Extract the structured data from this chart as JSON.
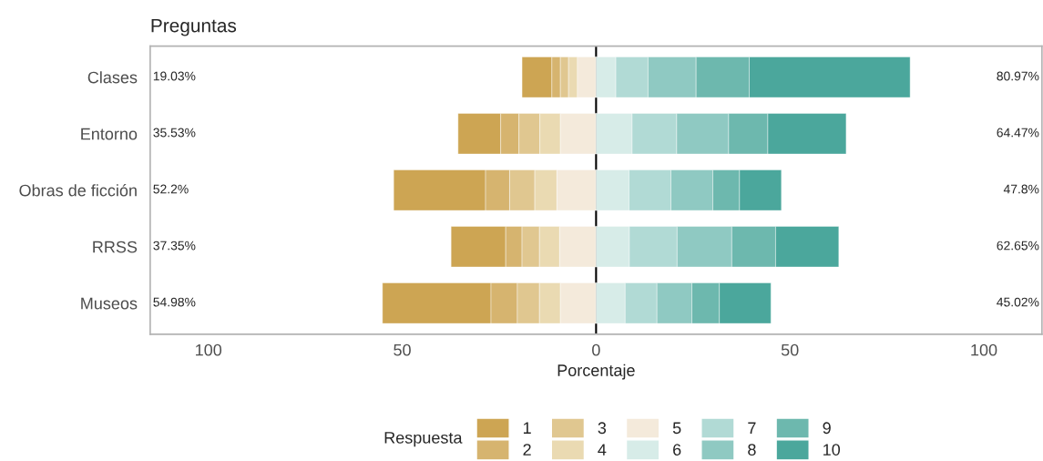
{
  "chart_data": {
    "type": "bar",
    "orientation": "horizontal",
    "stacked": true,
    "ylabel": "Preguntas",
    "xlabel": "Porcentaje",
    "legend_title": "Respuesta",
    "legend": "bottom",
    "grid": false,
    "categories": [
      "Clases",
      "Entorno",
      "Obras de ficción",
      "RRSS",
      "Museos"
    ],
    "xlim": [
      -115,
      115
    ],
    "xticks": [
      {
        "value": -100,
        "label": "100"
      },
      {
        "value": -50,
        "label": "50"
      },
      0,
      50,
      100
    ],
    "ref_lines": [
      {
        "axis": "x",
        "value": 0,
        "color": "#000000"
      }
    ],
    "series": [
      {
        "name": "1",
        "color": "#cda553",
        "values": [
          -7.7,
          -11.0,
          -23.7,
          -14.1,
          -28.0
        ]
      },
      {
        "name": "2",
        "color": "#d6b46f",
        "values": [
          -2.2,
          -4.7,
          -6.2,
          -4.2,
          -6.8
        ]
      },
      {
        "name": "3",
        "color": "#e0c790",
        "values": [
          -2.1,
          -5.4,
          -6.5,
          -4.5,
          -5.7
        ]
      },
      {
        "name": "4",
        "color": "#eadab2",
        "values": [
          -2.3,
          -5.3,
          -5.7,
          -5.2,
          -5.4
        ]
      },
      {
        "name": "5",
        "color": "#f4eadb",
        "values": [
          -4.8,
          -9.2,
          -10.1,
          -9.4,
          -9.2
        ]
      },
      {
        "name": "6",
        "color": "#d7ece8",
        "values": [
          5.1,
          9.3,
          8.5,
          8.6,
          7.5
        ]
      },
      {
        "name": "7",
        "color": "#b1dad5",
        "values": [
          8.3,
          11.5,
          10.8,
          12.3,
          8.2
        ]
      },
      {
        "name": "8",
        "color": "#8fc9c2",
        "values": [
          12.4,
          13.4,
          10.8,
          14.1,
          9.0
        ]
      },
      {
        "name": "9",
        "color": "#6db8ae",
        "values": [
          13.7,
          10.1,
          6.9,
          11.3,
          7.1
        ]
      },
      {
        "name": "10",
        "color": "#4ba79c",
        "values": [
          41.5,
          20.2,
          10.8,
          16.3,
          13.3
        ]
      }
    ],
    "annotations": [
      "19.03%",
      "80.97%",
      "35.53%",
      "64.47%",
      "52.2%",
      "47.8%",
      "37.35%",
      "62.65%",
      "54.98%",
      "45.02%"
    ]
  }
}
